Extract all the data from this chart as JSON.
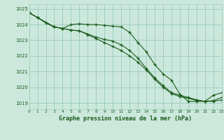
{
  "title": "Graphe pression niveau de la mer (hPa)",
  "bg_color": "#cce8dd",
  "grid_color": "#99ccbb",
  "line_color": "#1a5c1a",
  "xlim": [
    0,
    23
  ],
  "ylim": [
    1018.6,
    1025.3
  ],
  "yticks": [
    1019,
    1020,
    1021,
    1022,
    1023,
    1024,
    1025
  ],
  "xticks": [
    0,
    1,
    2,
    3,
    4,
    5,
    6,
    7,
    8,
    9,
    10,
    11,
    12,
    13,
    14,
    15,
    16,
    17,
    18,
    19,
    20,
    21,
    22,
    23
  ],
  "curve1_x": [
    0,
    1,
    3,
    4,
    5,
    6,
    7,
    8,
    9,
    10,
    11,
    12,
    13,
    14,
    15,
    16,
    17,
    18,
    19,
    20,
    21,
    22,
    23
  ],
  "curve1_y": [
    1024.75,
    1024.45,
    1023.85,
    1023.75,
    1023.65,
    1023.6,
    1023.35,
    1023.1,
    1022.85,
    1022.6,
    1022.35,
    1022.0,
    1021.6,
    1021.1,
    1020.5,
    1020.0,
    1019.6,
    1019.4,
    1019.3,
    1019.15,
    1019.1,
    1019.1,
    1019.2
  ],
  "curve2_x": [
    0,
    1,
    2,
    3,
    4,
    5,
    6,
    7,
    8,
    9,
    10,
    11,
    12,
    13,
    14,
    15,
    16,
    17,
    18,
    19,
    20,
    21,
    22,
    23
  ],
  "curve2_y": [
    1024.75,
    1024.45,
    1024.1,
    1023.85,
    1023.75,
    1023.65,
    1023.6,
    1023.4,
    1023.2,
    1023.05,
    1022.95,
    1022.7,
    1022.35,
    1021.85,
    1021.2,
    1020.6,
    1020.1,
    1019.65,
    1019.5,
    1019.35,
    1019.2,
    1019.1,
    1019.15,
    1019.35
  ],
  "curve3_x": [
    0,
    1,
    3,
    4,
    5,
    6,
    7,
    8,
    9,
    10,
    11,
    12,
    13,
    14,
    15,
    16,
    17,
    18,
    19,
    20,
    21,
    22,
    23
  ],
  "curve3_y": [
    1024.75,
    1024.45,
    1023.85,
    1023.75,
    1024.0,
    1024.05,
    1024.0,
    1024.0,
    1023.95,
    1023.9,
    1023.85,
    1023.5,
    1022.85,
    1022.25,
    1021.45,
    1020.85,
    1020.45,
    1019.55,
    1019.1,
    1019.1,
    1019.1,
    1019.5,
    1019.65
  ]
}
